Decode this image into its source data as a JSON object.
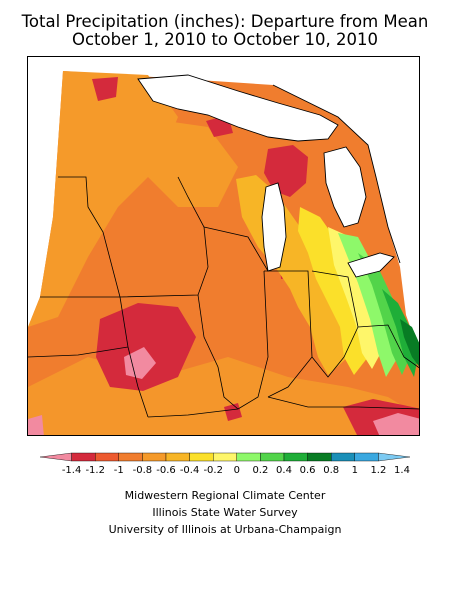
{
  "title": {
    "line1": "Total Precipitation (inches): Departure from Mean",
    "line2": "October 1, 2010 to October 10, 2010"
  },
  "legend": {
    "labels": [
      "-1.4",
      "-1.2",
      "-1",
      "-0.8",
      "-0.6",
      "-0.4",
      "-0.2",
      "0",
      "0.2",
      "0.4",
      "0.6",
      "0.8",
      "1",
      "1.2",
      "1.4"
    ],
    "colors": [
      "#f28aa0",
      "#d42a3c",
      "#ed5a2f",
      "#f07d2e",
      "#f59a2a",
      "#f7b526",
      "#fbe02a",
      "#fef66a",
      "#8ef86a",
      "#52d44a",
      "#1fae38",
      "#087c24",
      "#1a8fb8",
      "#3aa8e0",
      "#7ccaf2"
    ]
  },
  "credits": [
    "Midwestern Regional Climate Center",
    "Illinois State Water Survey",
    "University of Illinois at Urbana-Champaign"
  ],
  "colors": {
    "base": "#f07d2e",
    "dry_strong": "#d42a3c",
    "dry_extreme": "#f28aa0",
    "near_normal": "#fef66a",
    "wet": "#52d44a",
    "wet_strong": "#087c24"
  }
}
